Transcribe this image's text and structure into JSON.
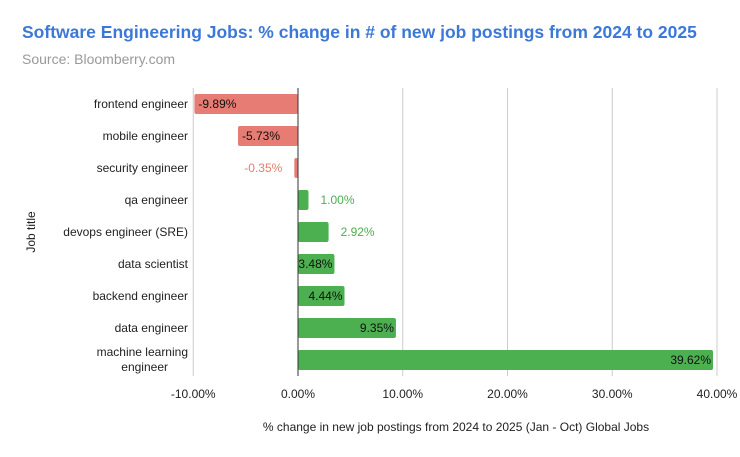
{
  "chart_data": {
    "type": "bar",
    "orientation": "horizontal",
    "title": "Software Engineering Jobs: % change in # of new job postings from 2024 to 2025",
    "subtitle": "Source: Bloomberry.com",
    "xlabel": "% change in new job postings from 2024 to 2025 (Jan - Oct) Global Jobs",
    "ylabel": "Job title",
    "xlim": [
      -10,
      40
    ],
    "xticks": [
      "-10.00%",
      "0.00%",
      "10.00%",
      "20.00%",
      "30.00%",
      "40.00%"
    ],
    "grid": true,
    "categories": [
      "frontend engineer",
      "mobile engineer",
      "security engineer",
      "qa engineer",
      "devops engineer (SRE)",
      "data scientist",
      "backend engineer",
      "data engineer",
      "machine learning engineer"
    ],
    "values": [
      -9.89,
      -5.73,
      -0.35,
      1.0,
      2.92,
      3.48,
      4.44,
      9.35,
      39.62
    ],
    "data_labels": [
      "-9.89%",
      "-5.73%",
      "-0.35%",
      "1.00%",
      "2.92%",
      "3.48%",
      "4.44%",
      "9.35%",
      "39.62%"
    ],
    "colors": {
      "negative": "#e67c73",
      "positive": "#4caf50",
      "title": "#3c78d8"
    }
  }
}
